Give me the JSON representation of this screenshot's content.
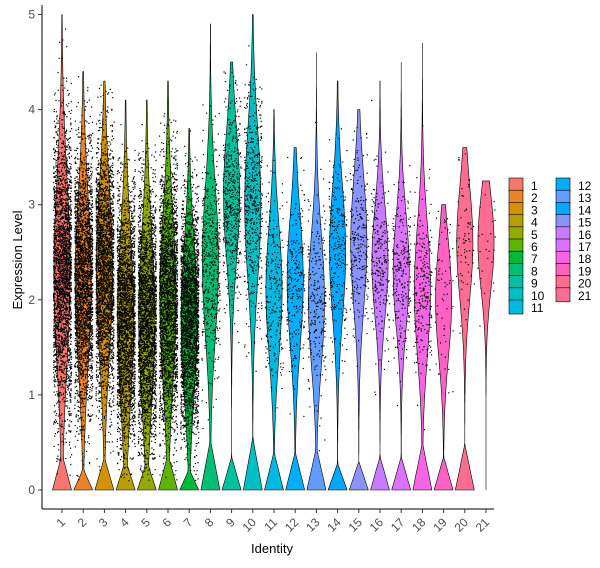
{
  "chart_data": {
    "type": "violin",
    "xlabel": "Identity",
    "ylabel": "Expression Level",
    "ylim": [
      -0.2,
      5.1
    ],
    "yticks": [
      0,
      1,
      2,
      3,
      4,
      5
    ],
    "grid": false,
    "legend_placement": "right",
    "legend_columns": 2,
    "categories": [
      "1",
      "2",
      "3",
      "4",
      "5",
      "6",
      "7",
      "8",
      "9",
      "10",
      "11",
      "12",
      "13",
      "14",
      "15",
      "16",
      "17",
      "18",
      "19",
      "20",
      "21"
    ],
    "colors": [
      "#F8766D",
      "#E88526",
      "#D39200",
      "#B79F00",
      "#93AA00",
      "#5EB300",
      "#00BA38",
      "#00BF74",
      "#00C19F",
      "#00BFC4",
      "#00B9E3",
      "#00ADFA",
      "#619CFF",
      "#00A9FF",
      "#8B93FF",
      "#C77CFF",
      "#DB72FB",
      "#F564E3",
      "#FF61C3",
      "#FF6C91",
      "#FF6C91"
    ],
    "series": [
      {
        "name": "1",
        "zero_peak": 0.38,
        "center": 2.3,
        "spread": 1.0,
        "max": 5.0,
        "density": "very high"
      },
      {
        "name": "2",
        "zero_peak": 0.22,
        "center": 2.2,
        "spread": 0.9,
        "max": 4.4,
        "density": "very high"
      },
      {
        "name": "3",
        "zero_peak": 0.34,
        "center": 2.3,
        "spread": 0.9,
        "max": 4.3,
        "density": "very high"
      },
      {
        "name": "4",
        "zero_peak": 0.32,
        "center": 1.8,
        "spread": 0.9,
        "max": 4.1,
        "density": "very high"
      },
      {
        "name": "5",
        "zero_peak": 0.3,
        "center": 1.8,
        "spread": 0.9,
        "max": 4.1,
        "density": "very high"
      },
      {
        "name": "6",
        "zero_peak": 0.38,
        "center": 2.0,
        "spread": 0.9,
        "max": 4.3,
        "density": "very high"
      },
      {
        "name": "7",
        "zero_peak": 0.22,
        "center": 1.8,
        "spread": 0.8,
        "max": 3.8,
        "density": "very high"
      },
      {
        "name": "8",
        "zero_peak": 0.53,
        "center": 2.4,
        "spread": 0.8,
        "max": 4.9,
        "density": "high"
      },
      {
        "name": "9",
        "zero_peak": 0.35,
        "center": 3.1,
        "spread": 0.7,
        "max": 4.5,
        "density": "high"
      },
      {
        "name": "10",
        "zero_peak": 0.55,
        "center": 3.0,
        "spread": 0.8,
        "max": 5.0,
        "density": "high"
      },
      {
        "name": "11",
        "zero_peak": 0.4,
        "center": 2.1,
        "spread": 0.7,
        "max": 4.0,
        "density": "medium"
      },
      {
        "name": "12",
        "zero_peak": 0.4,
        "center": 2.2,
        "spread": 0.7,
        "max": 3.6,
        "density": "medium"
      },
      {
        "name": "13",
        "zero_peak": 0.45,
        "center": 2.0,
        "spread": 0.7,
        "max": 4.6,
        "density": "medium"
      },
      {
        "name": "14",
        "zero_peak": 0.28,
        "center": 2.5,
        "spread": 0.7,
        "max": 4.3,
        "density": "medium"
      },
      {
        "name": "15",
        "zero_peak": 0.3,
        "center": 2.6,
        "spread": 0.7,
        "max": 4.0,
        "density": "medium"
      },
      {
        "name": "16",
        "zero_peak": 0.35,
        "center": 2.4,
        "spread": 0.6,
        "max": 4.3,
        "density": "medium"
      },
      {
        "name": "17",
        "zero_peak": 0.35,
        "center": 2.3,
        "spread": 0.6,
        "max": 4.5,
        "density": "medium"
      },
      {
        "name": "18",
        "zero_peak": 0.5,
        "center": 2.1,
        "spread": 0.7,
        "max": 4.7,
        "density": "medium"
      },
      {
        "name": "19",
        "zero_peak": 0.35,
        "center": 2.0,
        "spread": 0.6,
        "max": 3.0,
        "density": "low"
      },
      {
        "name": "20",
        "zero_peak": 0.48,
        "center": 2.6,
        "spread": 0.6,
        "max": 3.6,
        "density": "low"
      },
      {
        "name": "21",
        "zero_peak": 0.0,
        "center": 2.6,
        "spread": 0.5,
        "max": 3.25,
        "density": "very low"
      }
    ]
  }
}
